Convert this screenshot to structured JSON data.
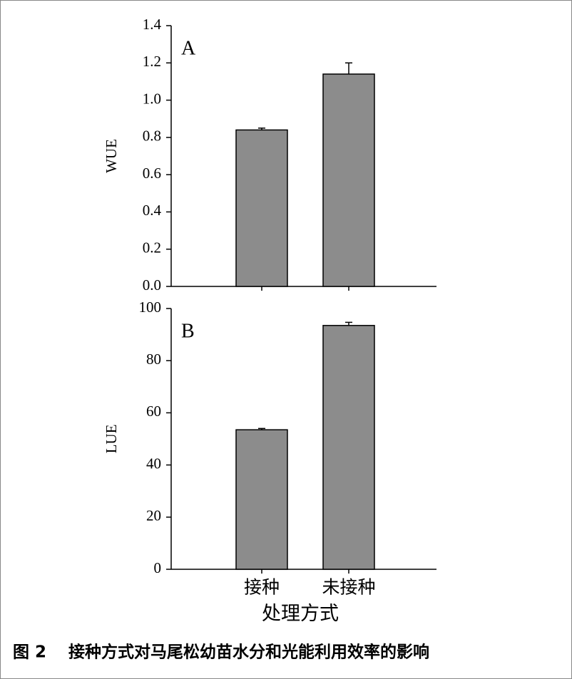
{
  "chart_data": [
    {
      "type": "bar",
      "panel": "A",
      "ylabel": "WUE",
      "categories": [
        null,
        null
      ],
      "values": [
        0.84,
        1.14
      ],
      "errors": [
        0.01,
        0.06
      ],
      "color": "#8c8c8c",
      "ylim": [
        0,
        1.4
      ],
      "yticks": [
        {
          "value": 0,
          "label": "0.0"
        },
        0.2,
        0.4,
        0.6,
        0.8,
        {
          "value": 1,
          "label": "1.0"
        },
        1.2,
        1.4
      ]
    },
    {
      "type": "bar",
      "panel": "B",
      "ylabel": "LUE",
      "xlabel": "处理方式",
      "categories": [
        "接种",
        "未接种"
      ],
      "values": [
        53.5,
        93.5
      ],
      "errors": [
        0.5,
        1.2
      ],
      "color": "#8c8c8c",
      "ylim": [
        0,
        100
      ],
      "yticks": [
        0,
        20,
        40,
        60,
        80,
        100
      ]
    }
  ],
  "caption": "图 2　 接种方式对马尾松幼苗水分和光能利用效率的影响"
}
